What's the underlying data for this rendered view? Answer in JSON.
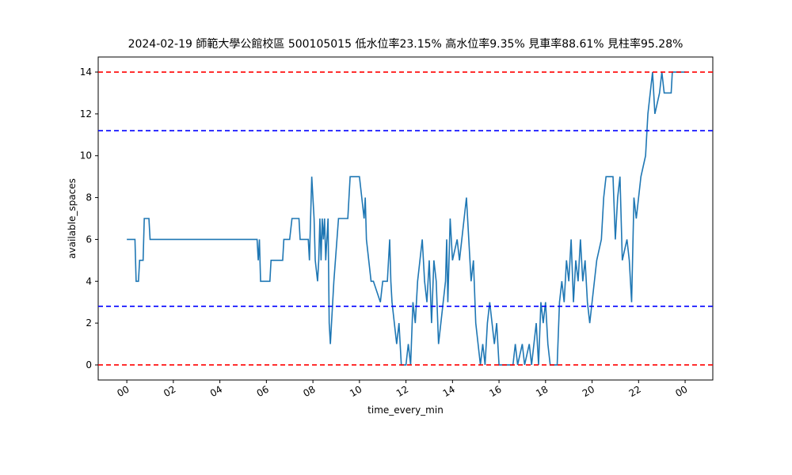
{
  "chart_data": {
    "type": "line",
    "title": "2024-02-19 師範大學公館校區 500105015 低水位率23.15% 高水位率9.35% 見車率88.61% 見柱率95.28%",
    "x_label": "time_every_min",
    "y_label": "available_spaces",
    "xlim": [
      -1.23,
      25.19
    ],
    "ylim": [
      -0.72,
      14.72
    ],
    "xticks": [
      {
        "value": 0,
        "label": "00"
      },
      {
        "value": 2,
        "label": "02"
      },
      {
        "value": 4,
        "label": "04"
      },
      {
        "value": 6,
        "label": "06"
      },
      {
        "value": 8,
        "label": "08"
      },
      {
        "value": 10,
        "label": "10"
      },
      12,
      14,
      16,
      18,
      20,
      22,
      {
        "value": 24,
        "label": "00"
      }
    ],
    "yticks": [
      0,
      2,
      4,
      6,
      8,
      10,
      12,
      14
    ],
    "hlines": [
      {
        "value": 0,
        "color": "#ff0000"
      },
      {
        "value": 14,
        "color": "#ff0000"
      },
      {
        "value": 11.2,
        "color": "#0000ff"
      },
      {
        "value": 2.8,
        "color": "#0000ff"
      }
    ],
    "series": [
      {
        "name": "available_spaces",
        "color": "#1f77b4",
        "x": [
          0,
          0.35,
          0.4,
          0.5,
          0.55,
          0.7,
          0.75,
          0.95,
          1.0,
          5.6,
          5.65,
          5.7,
          5.75,
          6.15,
          6.2,
          6.7,
          6.75,
          7.0,
          7.1,
          7.4,
          7.45,
          7.8,
          7.85,
          7.9,
          7.95,
          8.05,
          8.1,
          8.2,
          8.25,
          8.3,
          8.35,
          8.4,
          8.45,
          8.5,
          8.55,
          8.65,
          8.7,
          8.75,
          8.8,
          8.85,
          8.9,
          9.1,
          9.5,
          9.6,
          10.0,
          10.1,
          10.2,
          10.25,
          10.3,
          10.4,
          10.5,
          10.6,
          10.9,
          11.0,
          11.2,
          11.3,
          11.35,
          11.4,
          11.5,
          11.6,
          11.7,
          11.8,
          12.0,
          12.1,
          12.2,
          12.3,
          12.4,
          12.5,
          12.6,
          12.7,
          12.8,
          12.9,
          13.0,
          13.1,
          13.2,
          13.3,
          13.4,
          13.5,
          13.6,
          13.7,
          13.75,
          13.8,
          13.9,
          14.0,
          14.2,
          14.3,
          14.5,
          14.6,
          14.7,
          14.8,
          14.9,
          15.0,
          15.1,
          15.2,
          15.3,
          15.4,
          15.5,
          15.6,
          15.8,
          15.9,
          16.0,
          16.6,
          16.7,
          16.8,
          17.0,
          17.1,
          17.3,
          17.4,
          17.6,
          17.7,
          17.8,
          17.9,
          18.0,
          18.1,
          18.2,
          18.5,
          18.6,
          18.7,
          18.8,
          18.9,
          19.0,
          19.1,
          19.2,
          19.3,
          19.4,
          19.5,
          19.6,
          19.7,
          19.8,
          19.9,
          20.0,
          20.2,
          20.4,
          20.5,
          20.6,
          20.9,
          21.0,
          21.1,
          21.2,
          21.3,
          21.5,
          21.6,
          21.7,
          21.8,
          21.9,
          22.0,
          22.1,
          22.3,
          22.4,
          22.5,
          22.6,
          22.7,
          22.9,
          23.0,
          23.1,
          23.4,
          23.45,
          24.0
        ],
        "values": [
          6,
          6,
          4,
          4,
          5,
          5,
          7,
          7,
          6,
          6,
          5,
          6,
          4,
          4,
          5,
          5,
          6,
          6,
          7,
          7,
          6,
          6,
          5,
          7,
          9,
          7,
          5,
          4,
          5,
          7,
          5,
          7,
          6,
          7,
          5,
          7,
          2,
          1,
          2,
          3,
          4,
          7,
          7,
          9,
          9,
          8,
          7,
          8,
          6,
          5,
          4,
          4,
          3,
          4,
          4,
          6,
          4,
          3,
          2,
          1,
          2,
          0,
          0,
          1,
          0,
          3,
          2,
          4,
          5,
          6,
          4,
          3,
          5,
          2,
          5,
          4,
          1,
          2,
          3,
          4,
          6,
          3,
          7,
          5,
          6,
          5,
          7,
          8,
          6,
          4,
          5,
          2,
          1,
          0,
          1,
          0,
          2,
          3,
          1,
          2,
          0,
          0,
          1,
          0,
          1,
          0,
          1,
          0,
          2,
          0,
          3,
          2,
          3,
          1,
          0,
          0,
          3,
          4,
          3,
          5,
          4,
          6,
          3,
          5,
          4,
          6,
          4,
          5,
          3,
          2,
          3,
          5,
          6,
          8,
          9,
          9,
          6,
          8,
          9,
          5,
          6,
          5,
          3,
          8,
          7,
          8,
          9,
          10,
          12,
          13,
          14,
          12,
          13,
          14,
          13,
          13,
          14,
          14
        ]
      }
    ]
  }
}
